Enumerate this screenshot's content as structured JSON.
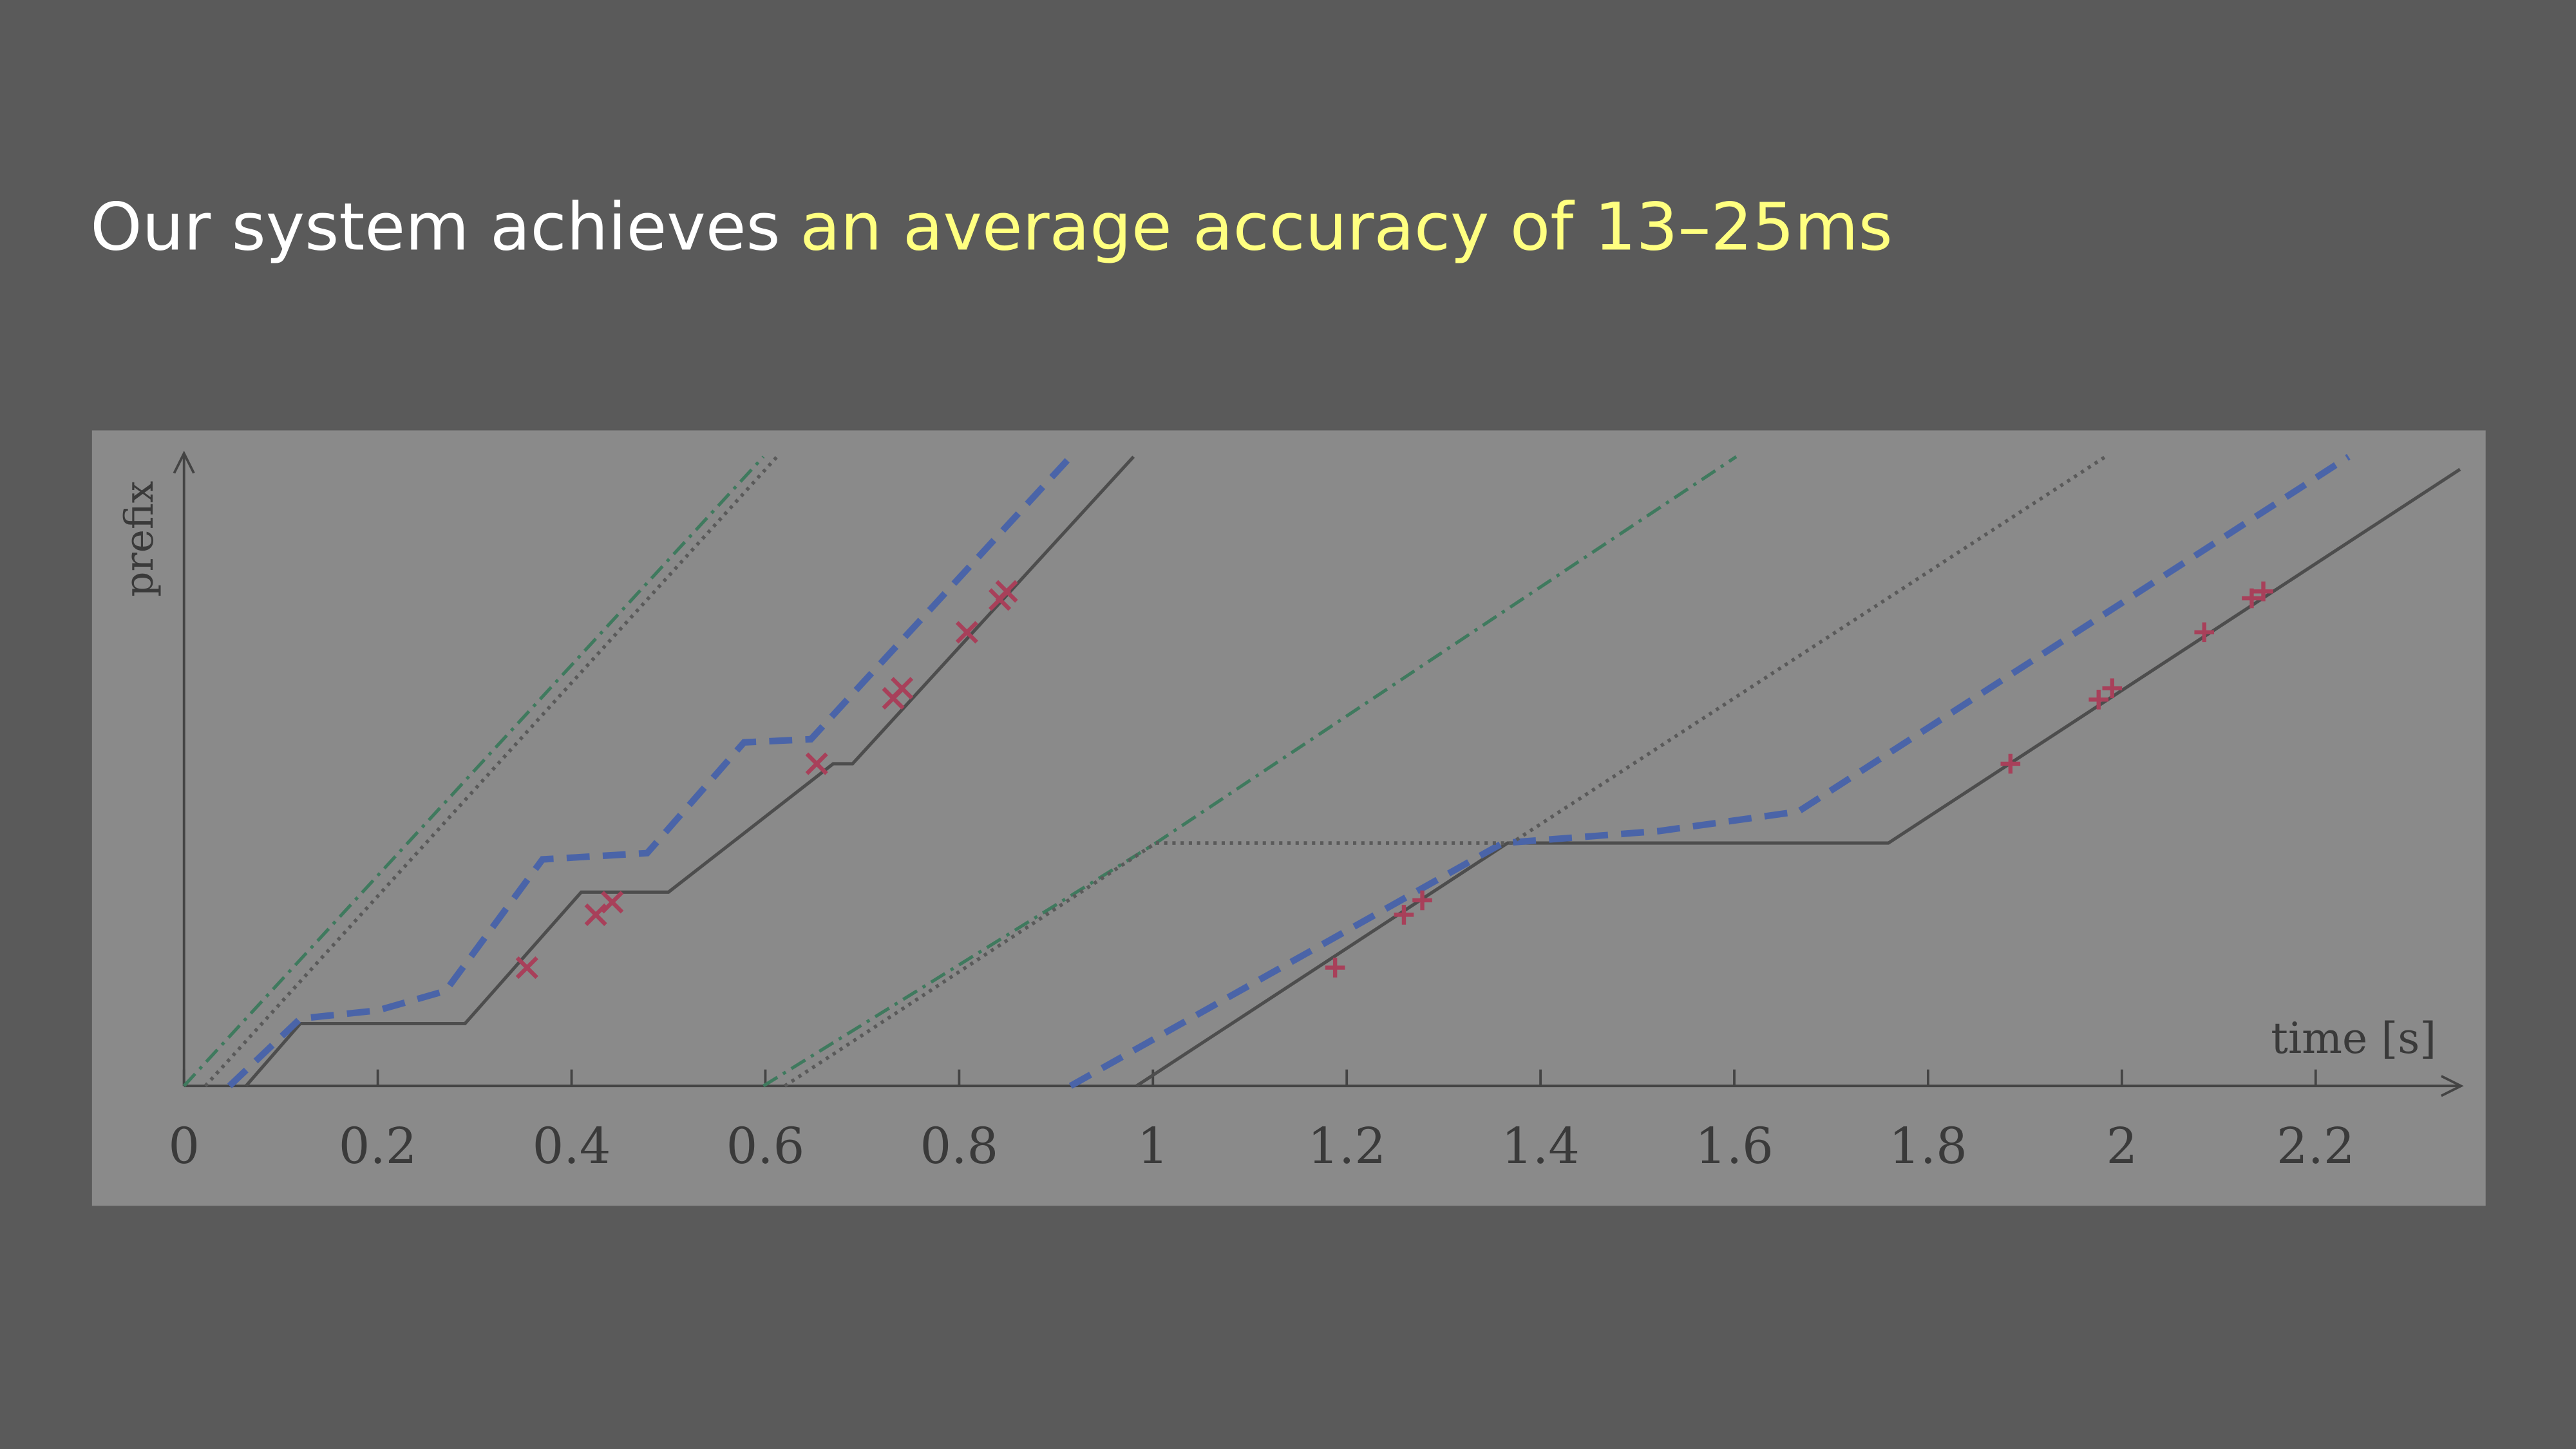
{
  "chart_data": {
    "type": "line",
    "title": "Our system achieves",
    "title_highlight": "an average accuracy of 13–25ms",
    "x_label": "time [s]",
    "y_label": "prefix",
    "xlim": [
      0,
      2.35
    ],
    "ylim": [
      0,
      1
    ],
    "xticks": [
      0,
      0.2,
      0.4,
      0.6,
      0.8,
      1,
      1.2,
      1.4,
      1.6,
      1.8,
      2,
      2.2
    ],
    "series": [
      {
        "color": "#4d4d4d",
        "style": "solid",
        "x": [
          0.064,
          0.12,
          0.29,
          0.41,
          0.5,
          0.67,
          0.69,
          0.98,
          null,
          0.983,
          1.366,
          1.759,
          2.349
        ],
        "values": [
          0,
          0.099,
          0.099,
          0.308,
          0.308,
          0.512,
          0.512,
          1.0,
          null,
          0,
          0.386,
          0.386,
          0.98
        ]
      },
      {
        "color": "#4a64a8",
        "style": "dashed",
        "x": [
          0.047,
          0.12,
          0.2,
          0.27,
          0.37,
          0.478,
          0.578,
          0.647,
          0.915,
          null,
          0.915,
          1.361,
          1.522,
          1.666,
          2.234
        ],
        "values": [
          0,
          0.107,
          0.12,
          0.151,
          0.36,
          0.37,
          0.546,
          0.551,
          1.0,
          null,
          0,
          0.386,
          0.405,
          0.436,
          1.0
        ]
      },
      {
        "color": "#3f7a5e",
        "style": "dashdot",
        "x": [
          0,
          0.598,
          null,
          0.598,
          1.003,
          1.602
        ],
        "values": [
          0,
          1.0,
          null,
          0,
          0.386,
          1.0
        ]
      },
      {
        "color": "#5a5a5a",
        "style": "dotted",
        "x": [
          0.022,
          0.612,
          null,
          0.62,
          1.003,
          1.37,
          1.983
        ],
        "values": [
          0,
          1.0,
          null,
          0,
          0.386,
          0.386,
          1.0
        ]
      },
      {
        "color": "#a8405a",
        "marker": "x",
        "x": [
          0.354,
          0.425,
          0.442,
          0.653,
          0.732,
          0.741,
          0.808,
          0.842,
          0.849
        ],
        "values": [
          0.188,
          0.272,
          0.292,
          0.512,
          0.616,
          0.632,
          0.721,
          0.773,
          0.786
        ]
      },
      {
        "color": "#a8405a",
        "marker": "+",
        "x": [
          1.188,
          1.259,
          1.278,
          1.885,
          1.976,
          1.99,
          2.085,
          2.134,
          2.146
        ],
        "values": [
          0.188,
          0.272,
          0.295,
          0.512,
          0.614,
          0.632,
          0.721,
          0.775,
          0.786
        ]
      }
    ]
  }
}
